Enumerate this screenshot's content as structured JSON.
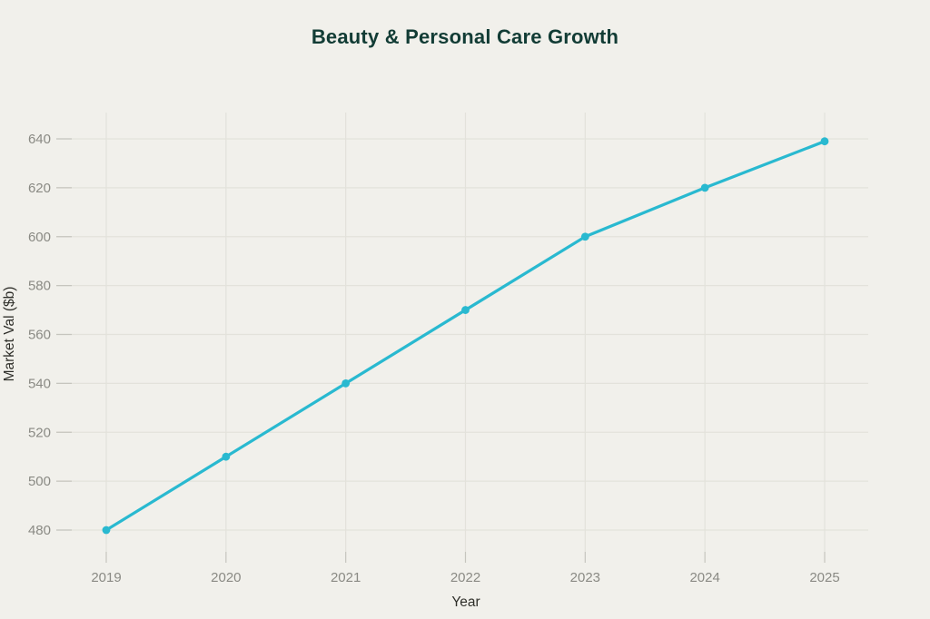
{
  "page": {
    "background_color": "#f1f0eb"
  },
  "chart_data": {
    "type": "line",
    "title": "Beauty & Personal Care Growth",
    "xlabel": "Year",
    "ylabel": "Market Val ($b)",
    "categories": [
      "2019",
      "2020",
      "2021",
      "2022",
      "2023",
      "2024",
      "2025"
    ],
    "values": [
      480,
      510,
      540,
      570,
      600,
      620,
      639
    ],
    "yticks": [
      480,
      500,
      520,
      540,
      560,
      580,
      600,
      620,
      640
    ],
    "ylim": [
      470,
      651
    ],
    "grid": true,
    "legend": false,
    "marker": "circle",
    "line_color": "#29b9d0",
    "marker_color": "#29b9d0",
    "grid_color": "#e3e2db",
    "tick_mark_color": "#c6c5be",
    "tick_label_color": "#8a8a84",
    "axis_label_color": "#2f2f2a",
    "title_color": "#123c35",
    "background_color": "#f1f0eb"
  }
}
